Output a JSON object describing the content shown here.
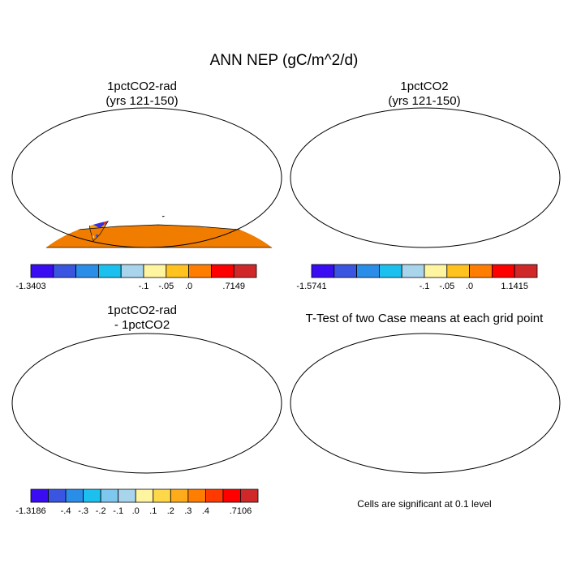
{
  "figure": {
    "title": "ANN NEP (gC/m^2/d)"
  },
  "panels": [
    {
      "title_line1": "1pctCO2-rad",
      "title_line2": "(yrs 121-150)"
    },
    {
      "title_line1": "1pctCO2",
      "title_line2": "(yrs 121-150)"
    },
    {
      "title_line1": "1pctCO2-rad",
      "title_line2": "- 1pctCO2"
    },
    {
      "title_line1": "T-Test of two Case means at each grid point",
      "title_line2": ""
    }
  ],
  "colorbars": [
    {
      "colors": [
        "#3a0cf2",
        "#3a55e0",
        "#2a8de8",
        "#1cc0ee",
        "#a8d4ec",
        "#fff5a0",
        "#ffc21e",
        "#ff7d00",
        "#ff0000",
        "#d02828"
      ],
      "labels": [
        {
          "text": "-1.3403",
          "at": 0
        },
        {
          "text": "-.1",
          "at": 4
        },
        {
          "text": "-.05",
          "at": 5
        },
        {
          "text": ".0",
          "at": 6
        },
        {
          "text": ".7149",
          "at": 8
        }
      ]
    },
    {
      "colors": [
        "#3a0cf2",
        "#3a55e0",
        "#2a8de8",
        "#1cc0ee",
        "#a8d4ec",
        "#fff5a0",
        "#ffc21e",
        "#ff7d00",
        "#ff0000",
        "#d02828"
      ],
      "labels": [
        {
          "text": "-1.5741",
          "at": 0
        },
        {
          "text": "-.1",
          "at": 4
        },
        {
          "text": "-.05",
          "at": 5
        },
        {
          "text": ".0",
          "at": 6
        },
        {
          "text": "1.1415",
          "at": 8
        }
      ]
    },
    {
      "colors": [
        "#3a0cf2",
        "#3a55e0",
        "#2a8de8",
        "#1cc0ee",
        "#7ec8f0",
        "#a8d4ec",
        "#fff5a0",
        "#ffd84a",
        "#ffac1c",
        "#ff7d00",
        "#ff3a00",
        "#ff0000",
        "#d02828"
      ],
      "labels": [
        {
          "text": "-1.3186",
          "at": 0
        },
        {
          "text": "-.4",
          "at": 1
        },
        {
          "text": "-.3",
          "at": 2
        },
        {
          "text": "-.2",
          "at": 3
        },
        {
          "text": "-.1",
          "at": 4
        },
        {
          "text": ".0",
          "at": 5
        },
        {
          "text": ".1",
          "at": 6
        },
        {
          "text": ".2",
          "at": 7
        },
        {
          "text": ".3",
          "at": 8
        },
        {
          "text": ".4",
          "at": 9
        },
        {
          "text": ".7106",
          "at": 11
        }
      ]
    }
  ],
  "map_fill": {
    "panel1": {
      "land": "#f0a010",
      "tropics": "#3a2ee0",
      "antarctica": "#f07c00",
      "speckle": [
        "#ffd24a",
        "#f07c00",
        "#e03020",
        "#3a55e0"
      ]
    },
    "panel2": {
      "land": "#d0302a",
      "antarctica": "#d0302a",
      "speckle": [
        "#e85a10",
        "#ffa020",
        "#b82020"
      ]
    },
    "panel3": {
      "land": "#a8d0ee",
      "tropics": "#3a1ee0",
      "antarctica": "#fff29a",
      "speckle": [
        "#7fb8ec",
        "#ffe98a",
        "#2a8de8",
        "#3a55e0"
      ]
    },
    "panel4": {
      "land": "#ee0000",
      "antarctica": "#ffffff",
      "speckle": [
        "#ffffff",
        "#ee0000"
      ]
    }
  },
  "significance_note": "Cells are significant at 0.1 level"
}
